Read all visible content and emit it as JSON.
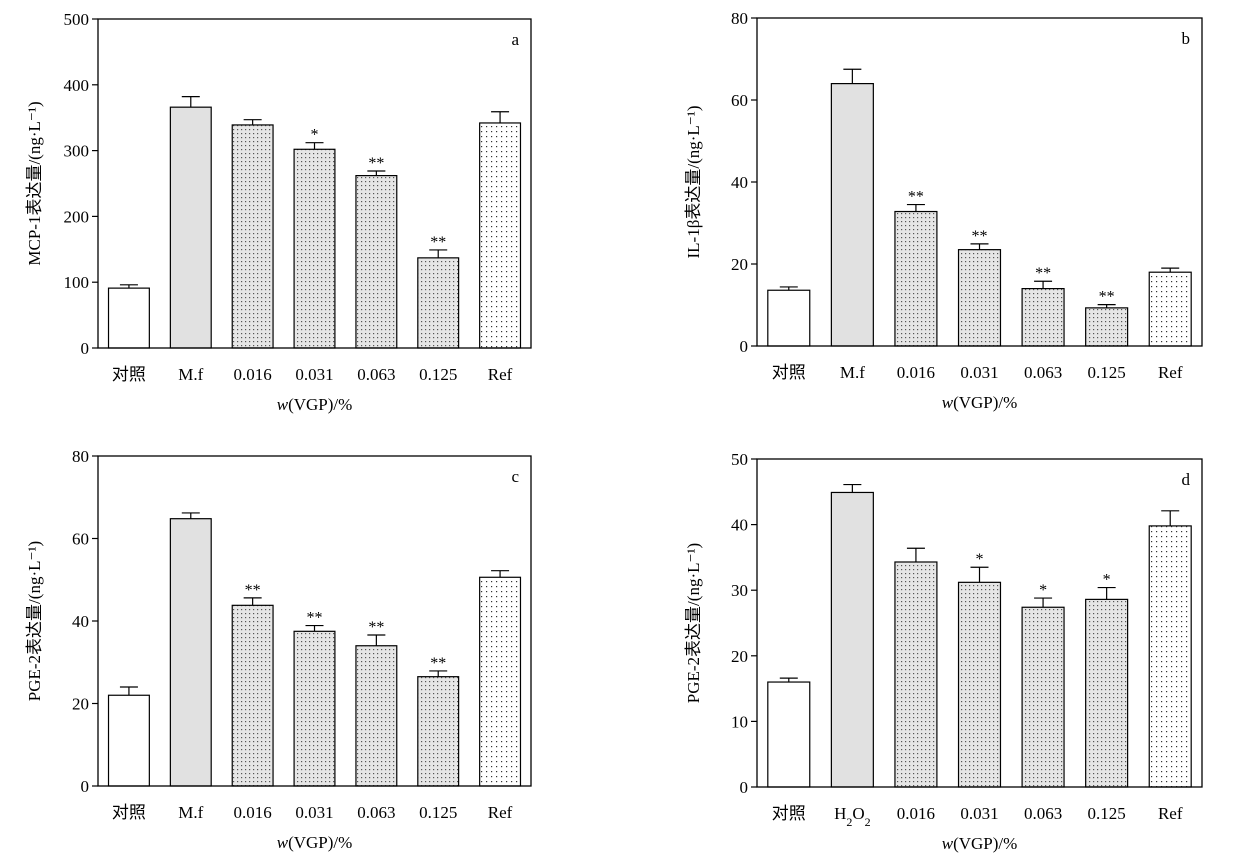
{
  "chart_data": [
    {
      "type": "bar",
      "panel": "a",
      "ylabel": "MCP-1表达量/(ng·L⁻¹)",
      "xlabel": "w(VGP)/%",
      "categories": [
        "对照",
        "M.f",
        "0.016",
        "0.031",
        "0.063",
        "0.125",
        "Ref"
      ],
      "values": [
        91,
        366,
        339,
        302,
        262,
        137,
        342
      ],
      "errors": [
        5,
        16,
        8,
        10,
        7,
        12,
        17
      ],
      "significance": [
        "",
        "",
        "",
        "*",
        "**",
        "**",
        ""
      ],
      "fills": [
        "white",
        "gray",
        "dots",
        "dots",
        "dots",
        "dots",
        "sparse"
      ],
      "ylim": [
        0,
        500
      ],
      "yticks": [
        0,
        100,
        200,
        300,
        400,
        500
      ]
    },
    {
      "type": "bar",
      "panel": "b",
      "ylabel": "IL-1β表达量/(ng·L⁻¹)",
      "xlabel": "w(VGP)/%",
      "categories": [
        "对照",
        "M.f",
        "0.016",
        "0.031",
        "0.063",
        "0.125",
        "Ref"
      ],
      "values": [
        13.6,
        64,
        32.8,
        23.5,
        14,
        9.3,
        18
      ],
      "errors": [
        0.8,
        3.5,
        1.7,
        1.4,
        1.8,
        0.8,
        1
      ],
      "significance": [
        "",
        "",
        "**",
        "**",
        "**",
        "**",
        ""
      ],
      "fills": [
        "white",
        "gray",
        "dots",
        "dots",
        "dots",
        "dots",
        "sparse"
      ],
      "ylim": [
        0,
        80
      ],
      "yticks": [
        0,
        20,
        40,
        60,
        80
      ]
    },
    {
      "type": "bar",
      "panel": "c",
      "ylabel": "PGE-2表达量/(ng·L⁻¹)",
      "xlabel": "w(VGP)/%",
      "categories": [
        "对照",
        "M.f",
        "0.016",
        "0.031",
        "0.063",
        "0.125",
        "Ref"
      ],
      "values": [
        22,
        64.8,
        43.8,
        37.5,
        34,
        26.5,
        50.6
      ],
      "errors": [
        2,
        1.4,
        1.8,
        1.4,
        2.6,
        1.4,
        1.6
      ],
      "significance": [
        "",
        "",
        "**",
        "**",
        "**",
        "**",
        ""
      ],
      "fills": [
        "white",
        "gray",
        "dots",
        "dots",
        "dots",
        "dots",
        "sparse"
      ],
      "ylim": [
        0,
        80
      ],
      "yticks": [
        0,
        20,
        40,
        60,
        80
      ]
    },
    {
      "type": "bar",
      "panel": "d",
      "ylabel": "PGE-2表达量/(ng·L⁻¹)",
      "xlabel": "w(VGP)/%",
      "categories": [
        "对照",
        "H₂O₂",
        "0.016",
        "0.031",
        "0.063",
        "0.125",
        "Ref"
      ],
      "values": [
        16,
        44.9,
        34.3,
        31.2,
        27.4,
        28.6,
        39.8
      ],
      "errors": [
        0.6,
        1.2,
        2.1,
        2.3,
        1.4,
        1.8,
        2.3
      ],
      "significance": [
        "",
        "",
        "",
        "*",
        "*",
        "*",
        ""
      ],
      "fills": [
        "white",
        "gray",
        "dots",
        "dots",
        "dots",
        "dots",
        "sparse"
      ],
      "ylim": [
        0,
        50
      ],
      "yticks": [
        0,
        10,
        20,
        30,
        40,
        50
      ]
    }
  ]
}
